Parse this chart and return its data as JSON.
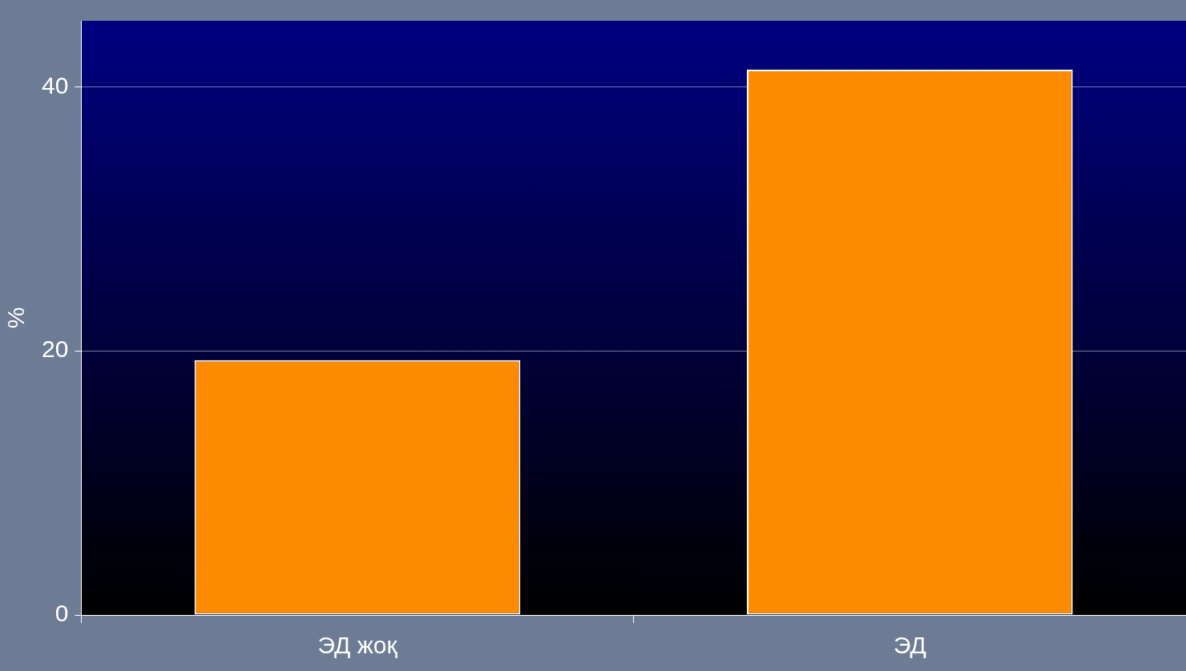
{
  "chart_data": {
    "type": "bar",
    "ylabel": "%",
    "categories": [
      "ЭД жоқ",
      "ЭД"
    ],
    "values": [
      19.3,
      41.3
    ],
    "color": "#ff8c00",
    "ylim": [
      0,
      45
    ],
    "yticks": [
      0,
      20,
      40
    ],
    "grid": "y",
    "legend": false
  }
}
